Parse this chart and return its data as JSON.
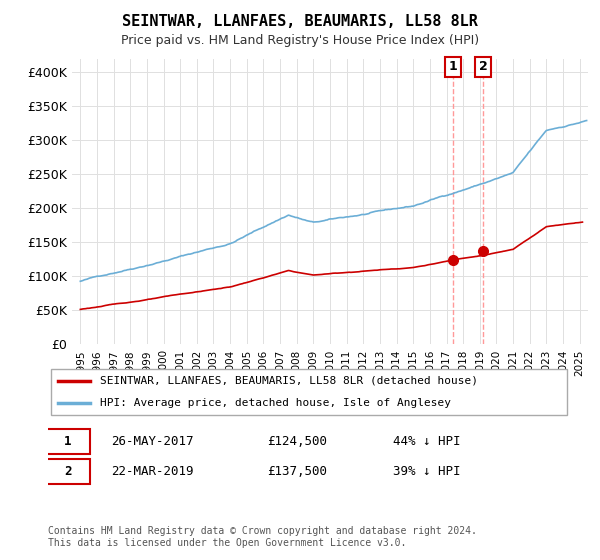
{
  "title": "SEINTWAR, LLANFAES, BEAUMARIS, LL58 8LR",
  "subtitle": "Price paid vs. HM Land Registry's House Price Index (HPI)",
  "legend_line1": "SEINTWAR, LLANFAES, BEAUMARIS, LL58 8LR (detached house)",
  "legend_line2": "HPI: Average price, detached house, Isle of Anglesey",
  "annotation1_label": "1",
  "annotation1_date": "26-MAY-2017",
  "annotation1_price": "£124,500",
  "annotation1_hpi": "44% ↓ HPI",
  "annotation1_year": 2017.4,
  "annotation1_value": 124500,
  "annotation2_label": "2",
  "annotation2_date": "22-MAR-2019",
  "annotation2_price": "£137,500",
  "annotation2_hpi": "39% ↓ HPI",
  "annotation2_year": 2019.2,
  "annotation2_value": 137500,
  "hpi_color": "#6baed6",
  "price_color": "#cc0000",
  "marker_color": "#cc0000",
  "vline_color": "#ff9999",
  "footnote": "Contains HM Land Registry data © Crown copyright and database right 2024.\nThis data is licensed under the Open Government Licence v3.0.",
  "ylim": [
    0,
    420000
  ],
  "xlim_start": 1995,
  "xlim_end": 2025.5
}
